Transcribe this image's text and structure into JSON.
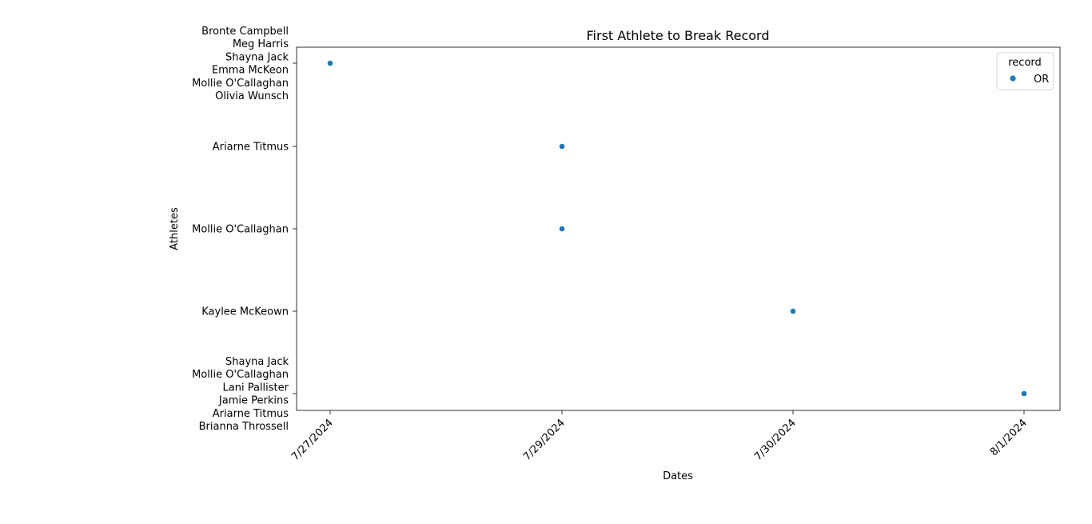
{
  "chart_data": {
    "type": "scatter",
    "title": "First Athlete to Break Record",
    "xlabel": "Dates",
    "ylabel": "Athletes",
    "x_categories": [
      "7/27/2024",
      "7/29/2024",
      "7/30/2024",
      "8/1/2024"
    ],
    "y_categories": [
      "Bronte Campbell\nMeg Harris\nShayna Jack\nEmma McKeon\nMollie O'Callaghan\nOlivia Wunsch",
      "Ariarne Titmus",
      "Mollie O'Callaghan",
      "Kaylee McKeown",
      "Shayna Jack\nMollie O'Callaghan\nLani Pallister\nJamie Perkins\nAriarne Titmus\nBrianna Throssell"
    ],
    "legend": {
      "title": "record",
      "position": "top-right"
    },
    "grid": false,
    "series": [
      {
        "name": "OR",
        "color": "#1f77b4",
        "points": [
          {
            "x": "7/27/2024",
            "y": "Bronte Campbell\nMeg Harris\nShayna Jack\nEmma McKeon\nMollie O'Callaghan\nOlivia Wunsch"
          },
          {
            "x": "7/29/2024",
            "y": "Ariarne Titmus"
          },
          {
            "x": "7/29/2024",
            "y": "Mollie O'Callaghan"
          },
          {
            "x": "7/30/2024",
            "y": "Kaylee McKeown"
          },
          {
            "x": "8/1/2024",
            "y": "Shayna Jack\nMollie O'Callaghan\nLani Pallister\nJamie Perkins\nAriarne Titmus\nBrianna Throssell"
          }
        ]
      }
    ]
  }
}
